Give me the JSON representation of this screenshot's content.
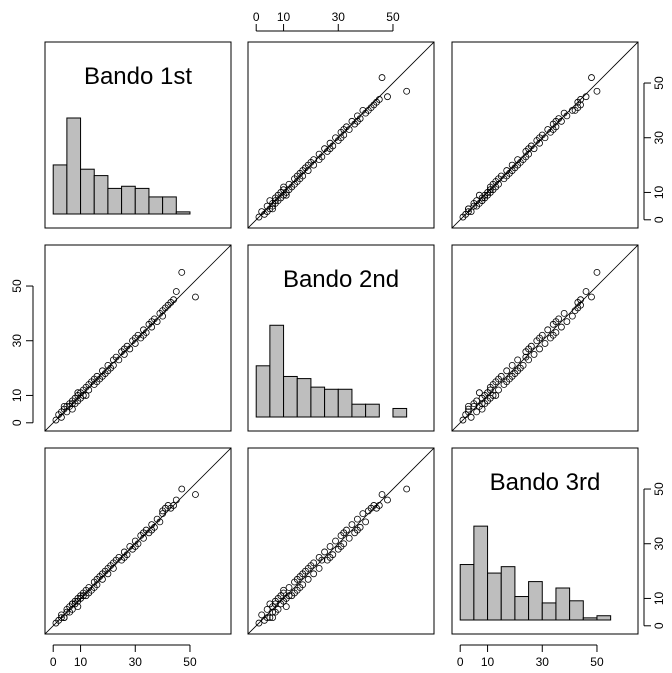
{
  "chart_data": {
    "type": "scatter",
    "variables": [
      "Bando 1st",
      "Bando 2nd",
      "Bando 3rd"
    ],
    "axis_ticks": [
      0,
      10,
      30,
      50
    ],
    "axis_range": [
      -3,
      65
    ],
    "diagonal": {
      "type": "histogram",
      "bin_edges": [
        0,
        5,
        10,
        15,
        20,
        25,
        30,
        35,
        40,
        45,
        50,
        55,
        60
      ],
      "histograms": [
        {
          "variable": "Bando 1st",
          "counts": [
            23,
            45,
            21,
            18,
            12,
            13,
            12,
            8,
            8,
            1,
            0,
            0
          ]
        },
        {
          "variable": "Bando 2nd",
          "counts": [
            24,
            43,
            19,
            18,
            14,
            13,
            13,
            6,
            6,
            0,
            4,
            0
          ]
        },
        {
          "variable": "Bando 3rd",
          "counts": [
            26,
            44,
            22,
            25,
            11,
            18,
            8,
            15,
            9,
            1,
            2,
            0
          ]
        }
      ]
    },
    "reference_line": "y = x",
    "points": [
      [
        1,
        1,
        1
      ],
      [
        2,
        3,
        2
      ],
      [
        3,
        2,
        4
      ],
      [
        4,
        5,
        3
      ],
      [
        5,
        4,
        6
      ],
      [
        6,
        7,
        5
      ],
      [
        6,
        6,
        7
      ],
      [
        7,
        8,
        6
      ],
      [
        8,
        7,
        9
      ],
      [
        8,
        9,
        8
      ],
      [
        9,
        10,
        9
      ],
      [
        10,
        9,
        11
      ],
      [
        10,
        11,
        10
      ],
      [
        11,
        10,
        12
      ],
      [
        12,
        13,
        11
      ],
      [
        13,
        12,
        14
      ],
      [
        14,
        15,
        13
      ],
      [
        15,
        14,
        16
      ],
      [
        16,
        17,
        15
      ],
      [
        17,
        16,
        18
      ],
      [
        18,
        19,
        17
      ],
      [
        19,
        18,
        20
      ],
      [
        20,
        21,
        19
      ],
      [
        21,
        20,
        22
      ],
      [
        22,
        23,
        21
      ],
      [
        23,
        24,
        24
      ],
      [
        24,
        23,
        25
      ],
      [
        25,
        26,
        24
      ],
      [
        26,
        25,
        27
      ],
      [
        27,
        28,
        26
      ],
      [
        28,
        27,
        29
      ],
      [
        29,
        30,
        28
      ],
      [
        30,
        29,
        31
      ],
      [
        31,
        32,
        30
      ],
      [
        32,
        31,
        33
      ],
      [
        33,
        34,
        32
      ],
      [
        34,
        33,
        35
      ],
      [
        35,
        36,
        34
      ],
      [
        36,
        35,
        37
      ],
      [
        37,
        38,
        36
      ],
      [
        38,
        37,
        39
      ],
      [
        39,
        40,
        38
      ],
      [
        40,
        41,
        42
      ],
      [
        41,
        42,
        43
      ],
      [
        42,
        43,
        44
      ],
      [
        43,
        44,
        43
      ],
      [
        44,
        45,
        44
      ],
      [
        45,
        48,
        46
      ],
      [
        4,
        6,
        3
      ],
      [
        7,
        5,
        8
      ],
      [
        9,
        11,
        7
      ],
      [
        12,
        10,
        13
      ],
      [
        15,
        16,
        14
      ],
      [
        18,
        17,
        19
      ],
      [
        22,
        21,
        23
      ],
      [
        26,
        27,
        25
      ],
      [
        30,
        31,
        29
      ],
      [
        33,
        32,
        34
      ],
      [
        36,
        37,
        35
      ],
      [
        40,
        39,
        41
      ],
      [
        47,
        55,
        50
      ],
      [
        52,
        46,
        48
      ],
      [
        3,
        4,
        3
      ],
      [
        5,
        6,
        5
      ],
      [
        7,
        7,
        8
      ],
      [
        9,
        8,
        10
      ],
      [
        11,
        12,
        11
      ],
      [
        13,
        14,
        12
      ],
      [
        16,
        15,
        17
      ],
      [
        20,
        19,
        21
      ]
    ]
  }
}
